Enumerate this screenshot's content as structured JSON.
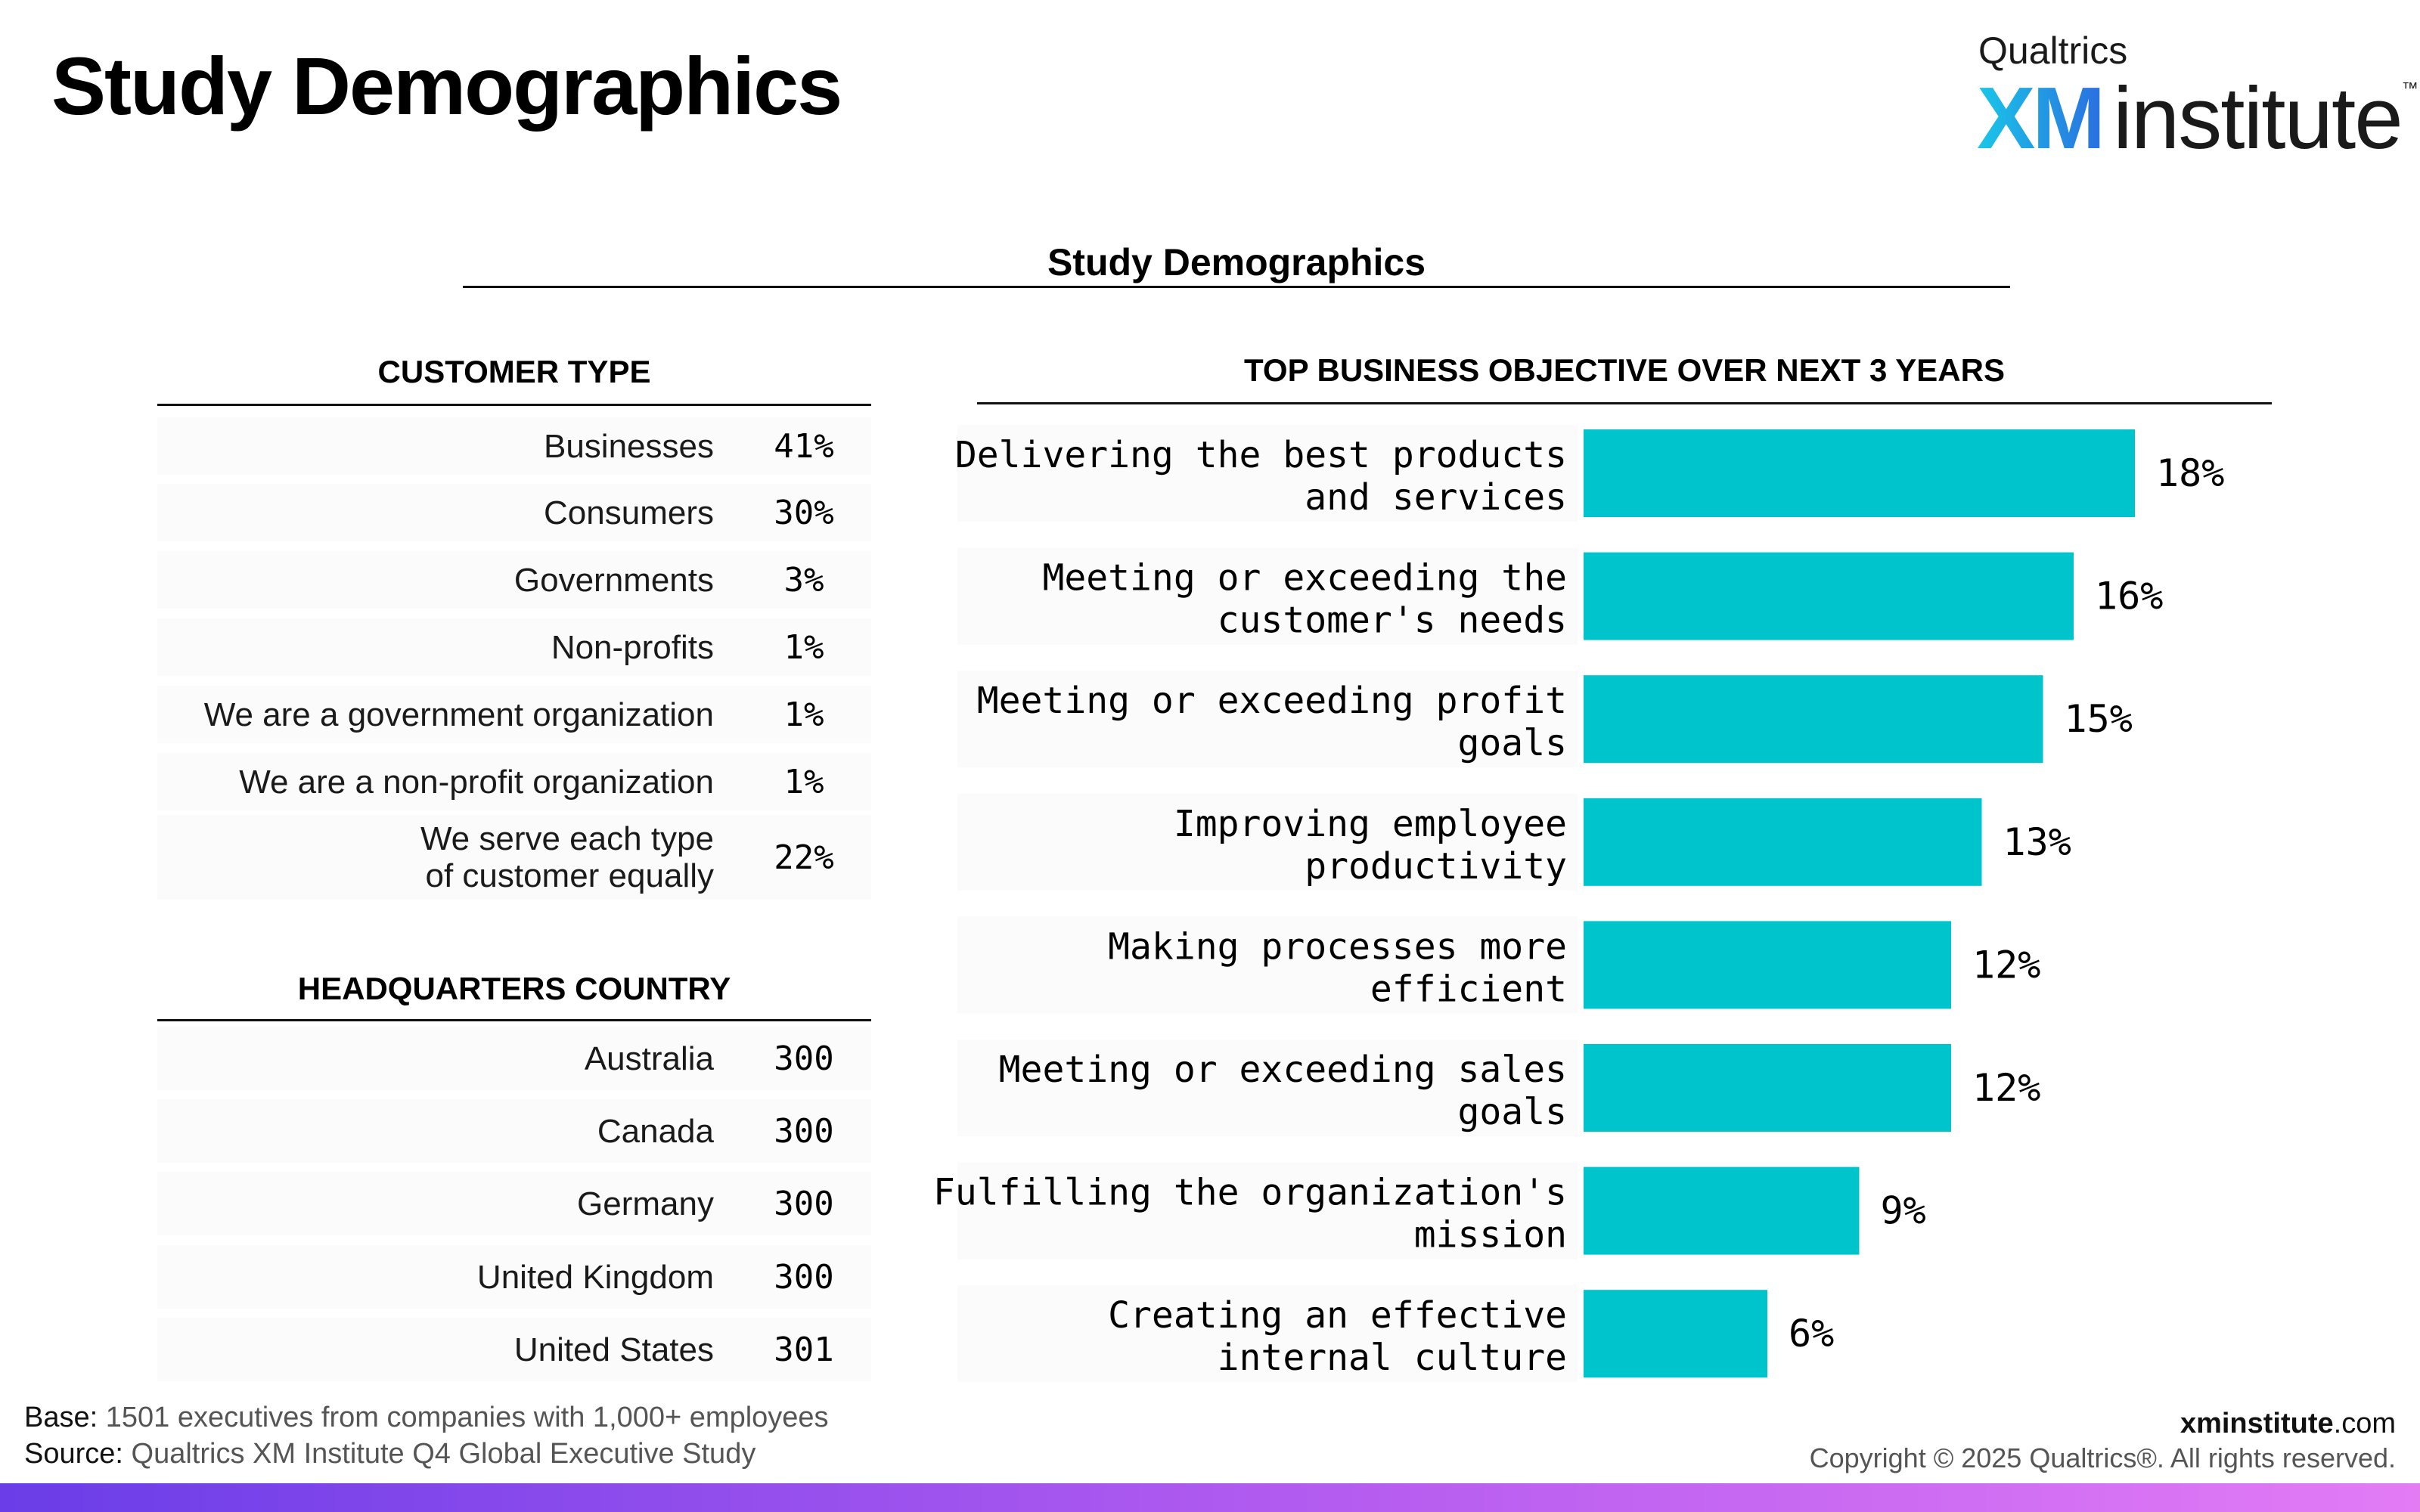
{
  "header": {
    "title": "Study Demographics"
  },
  "logo": {
    "top": "Qualtrics",
    "xm": "XM",
    "word": "institute",
    "tm": "™"
  },
  "section": {
    "title": "Study Demographics"
  },
  "customer_type": {
    "heading": "CUSTOMER TYPE",
    "rows": [
      {
        "label": "Businesses",
        "value": "41%"
      },
      {
        "label": "Consumers",
        "value": "30%"
      },
      {
        "label": "Governments",
        "value": "3%"
      },
      {
        "label": "Non-profits",
        "value": "1%"
      },
      {
        "label": "We are a government organization",
        "value": "1%"
      },
      {
        "label": "We are a non-profit organization",
        "value": "1%"
      },
      {
        "label": "We serve each type of customer equally",
        "value": "22%"
      }
    ]
  },
  "hq_country": {
    "heading": "HEADQUARTERS COUNTRY",
    "rows": [
      {
        "label": "Australia",
        "value": "300"
      },
      {
        "label": "Canada",
        "value": "300"
      },
      {
        "label": "Germany",
        "value": "300"
      },
      {
        "label": "United Kingdom",
        "value": "300"
      },
      {
        "label": "United States",
        "value": "301"
      }
    ]
  },
  "chart_data": {
    "type": "bar",
    "orientation": "horizontal",
    "title": "TOP BUSINESS OBJECTIVE OVER NEXT 3 YEARS",
    "categories": [
      "Delivering the best products and services",
      "Meeting or exceeding the customer's needs",
      "Meeting or exceeding profit goals",
      "Improving employee productivity",
      "Making processes more efficient",
      "Meeting or exceeding sales goals",
      "Fulfilling the organization's mission",
      "Creating an effective internal culture"
    ],
    "label_lines": [
      [
        "Delivering the best products",
        "and services"
      ],
      [
        "Meeting or exceeding the",
        "customer's needs"
      ],
      [
        "Meeting or exceeding profit",
        "goals"
      ],
      [
        "Improving employee",
        "productivity"
      ],
      [
        "Making processes more",
        "efficient"
      ],
      [
        "Meeting or exceeding sales",
        "goals"
      ],
      [
        "Fulfilling the organization's",
        "mission"
      ],
      [
        "Creating an effective",
        "internal culture"
      ]
    ],
    "values": [
      18,
      16,
      15,
      13,
      12,
      12,
      9,
      6
    ],
    "value_labels": [
      "18%",
      "16%",
      "15%",
      "13%",
      "12%",
      "12%",
      "9%",
      "6%"
    ],
    "bar_color": "#00c4cc",
    "grid": false
  },
  "footer": {
    "base_label": "Base:",
    "base_text": "1501 executives from companies with 1,000+ employees",
    "source_label": "Source:",
    "source_text": "Qualtrics XM Institute Q4 Global Executive Study",
    "site_bold": "xminstitute",
    "site_rest": ".com",
    "copyright": "Copyright © 2025 Qualtrics®. All rights reserved."
  }
}
